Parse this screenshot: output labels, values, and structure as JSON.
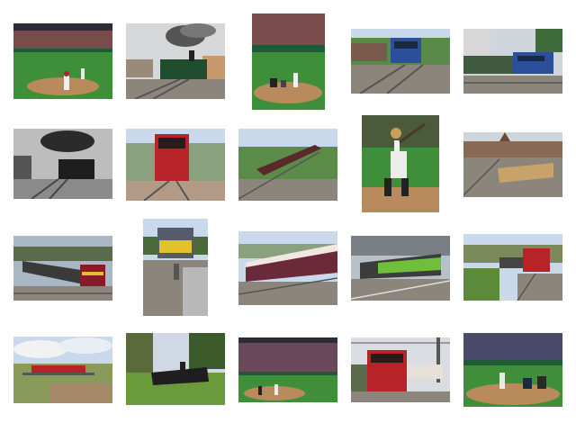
{
  "grid": {
    "rows": 4,
    "columns": 5,
    "background": "#ffffff",
    "thumbnails": [
      {
        "subject": "baseball",
        "scene": "stadium-pitch"
      },
      {
        "subject": "train",
        "scene": "steam-locomotive-smoke"
      },
      {
        "subject": "baseball",
        "scene": "stadium-batter"
      },
      {
        "subject": "train",
        "scene": "blue-locomotive"
      },
      {
        "subject": "train",
        "scene": "blue-electric-locomotive-city"
      },
      {
        "subject": "train",
        "scene": "steam-locomotive-bw"
      },
      {
        "subject": "train",
        "scene": "red-diesel-front"
      },
      {
        "subject": "train",
        "scene": "maroon-passenger-train"
      },
      {
        "subject": "baseball",
        "scene": "youth-batter"
      },
      {
        "subject": "train",
        "scene": "station-yard-town"
      },
      {
        "subject": "train",
        "scene": "freight-diesel-ews"
      },
      {
        "subject": "train",
        "scene": "yellow-front-diesel"
      },
      {
        "subject": "train",
        "scene": "luxury-coaches"
      },
      {
        "subject": "train",
        "scene": "green-regional-train"
      },
      {
        "subject": "train",
        "scene": "red-diesel-yard"
      },
      {
        "subject": "train",
        "scene": "bridge-landscape"
      },
      {
        "subject": "train",
        "scene": "steam-locomotive-woods"
      },
      {
        "subject": "baseball",
        "scene": "stadium-wide"
      },
      {
        "subject": "train",
        "scene": "red-electric-locomotive"
      },
      {
        "subject": "baseball",
        "scene": "stadium-batter-catcher"
      }
    ]
  },
  "colors": {
    "grass": "#3f8f3a",
    "dirt": "#b98a5c",
    "crowd": "#7a4b4b",
    "sky": "#c9d8ea",
    "rail": "#6b6b6b",
    "ballast": "#8c857c",
    "loco_green": "#1f4d2e",
    "loco_red": "#b6242a",
    "loco_blue": "#2c4f9a",
    "loco_maroon": "#5a2a2a",
    "loco_yellow": "#e2c12a",
    "regional_green": "#6fbf3c"
  }
}
